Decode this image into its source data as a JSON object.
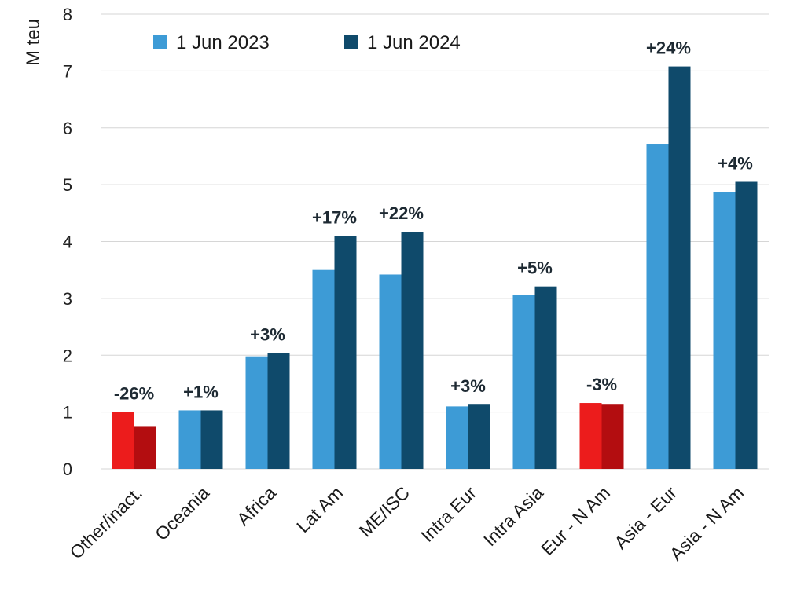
{
  "chart_data": {
    "type": "bar",
    "ylabel": "M teu",
    "ylim": [
      0,
      8
    ],
    "yticks": [
      "0",
      "1",
      "2",
      "3",
      "4",
      "5",
      "6",
      "7",
      "8"
    ],
    "grid": "horizontal",
    "legend_position": "top-left",
    "categories": [
      "Other/inact.",
      "Oceania",
      "Africa",
      "Lat Am",
      "ME/ISC",
      "Intra Eur",
      "Intra Asia",
      "Eur - N Am",
      "Asia - Eur",
      "Asia - N Am"
    ],
    "series": [
      {
        "name": "1 Jun 2023",
        "values": [
          1.0,
          1.03,
          1.98,
          3.5,
          3.42,
          1.1,
          3.06,
          1.16,
          5.72,
          4.87
        ]
      },
      {
        "name": "1 Jun 2024",
        "values": [
          0.74,
          1.03,
          2.04,
          4.1,
          4.17,
          1.13,
          3.21,
          1.13,
          7.08,
          5.05
        ]
      }
    ],
    "change_labels": [
      "-26%",
      "+1%",
      "+3%",
      "+17%",
      "+22%",
      "+3%",
      "+5%",
      "-3%",
      "+24%",
      "+4%"
    ],
    "negative_categories": [
      0,
      7
    ],
    "colors": {
      "series_2023": "#3d9bd6",
      "series_2024": "#0f4a6b",
      "negative_2023": "#ec1c1c",
      "negative_2024": "#b30d10",
      "grid": "#d6d6d6"
    }
  }
}
